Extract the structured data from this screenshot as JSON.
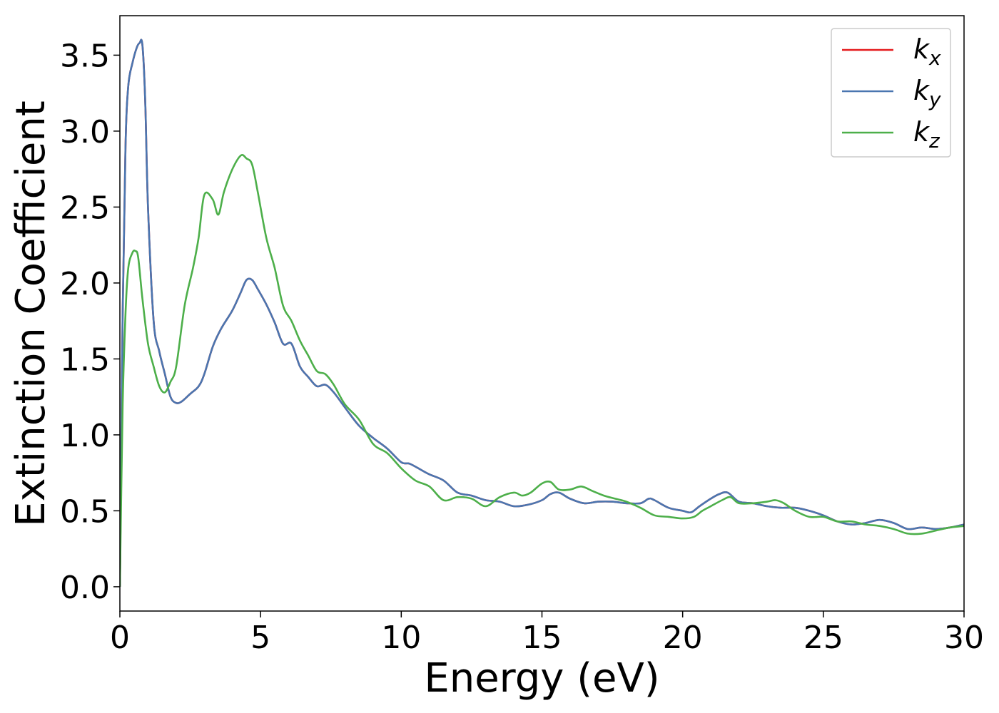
{
  "chart_data": {
    "type": "line",
    "title": "",
    "xlabel": "Energy (eV)",
    "ylabel": "Extinction Coefficient",
    "xlim": [
      0,
      30
    ],
    "ylim": [
      -0.16,
      3.76
    ],
    "xticks": [
      0,
      5,
      10,
      15,
      20,
      25,
      30
    ],
    "xtick_labels": [
      "0",
      "5",
      "10",
      "15",
      "20",
      "25",
      "30"
    ],
    "yticks": [
      0.0,
      0.5,
      1.0,
      1.5,
      2.0,
      2.5,
      3.0,
      3.5
    ],
    "ytick_labels": [
      "0.0",
      "0.5",
      "1.0",
      "1.5",
      "2.0",
      "2.5",
      "3.0",
      "3.5"
    ],
    "grid": false,
    "legend_position": "top-right",
    "series": [
      {
        "name": "k",
        "subscript": "x",
        "color": "#e41a1c",
        "x": [
          0,
          0.1,
          0.2,
          0.3,
          0.45,
          0.6,
          0.7,
          0.8,
          0.9,
          1.0,
          1.2,
          1.4,
          1.6,
          1.8,
          2.0,
          2.2,
          2.5,
          2.8,
          3.0,
          3.3,
          3.6,
          4.0,
          4.3,
          4.5,
          4.7,
          4.9,
          5.2,
          5.5,
          5.8,
          6.1,
          6.4,
          6.7,
          7.0,
          7.3,
          7.6,
          8.0,
          8.5,
          9.0,
          9.5,
          10.0,
          10.3,
          10.7,
          11.0,
          11.5,
          12.0,
          12.5,
          13.0,
          13.5,
          14.0,
          14.5,
          15.0,
          15.3,
          15.6,
          16.0,
          16.5,
          17.0,
          17.5,
          18.0,
          18.5,
          18.8,
          19.0,
          19.5,
          20.0,
          20.3,
          20.6,
          21.0,
          21.3,
          21.6,
          22.0,
          22.5,
          23.0,
          23.5,
          24.0,
          24.5,
          25.0,
          25.5,
          26.0,
          26.5,
          27.0,
          27.5,
          28.0,
          28.5,
          29.0,
          29.5,
          30.0
        ],
        "y": [
          0.0,
          1.8,
          2.9,
          3.3,
          3.45,
          3.55,
          3.58,
          3.57,
          3.2,
          2.5,
          1.75,
          1.55,
          1.4,
          1.25,
          1.21,
          1.22,
          1.27,
          1.32,
          1.4,
          1.58,
          1.7,
          1.82,
          1.94,
          2.02,
          2.02,
          1.96,
          1.86,
          1.74,
          1.6,
          1.6,
          1.45,
          1.38,
          1.32,
          1.33,
          1.28,
          1.18,
          1.06,
          0.98,
          0.91,
          0.82,
          0.81,
          0.77,
          0.74,
          0.7,
          0.62,
          0.6,
          0.57,
          0.56,
          0.53,
          0.54,
          0.57,
          0.61,
          0.62,
          0.58,
          0.55,
          0.56,
          0.56,
          0.55,
          0.55,
          0.58,
          0.57,
          0.52,
          0.5,
          0.49,
          0.53,
          0.58,
          0.61,
          0.62,
          0.56,
          0.55,
          0.53,
          0.52,
          0.52,
          0.5,
          0.47,
          0.43,
          0.41,
          0.42,
          0.44,
          0.42,
          0.38,
          0.39,
          0.38,
          0.39,
          0.41
        ]
      },
      {
        "name": "k",
        "subscript": "y",
        "color": "#4a76b0",
        "x": [
          0,
          0.1,
          0.2,
          0.3,
          0.45,
          0.6,
          0.7,
          0.8,
          0.9,
          1.0,
          1.2,
          1.4,
          1.6,
          1.8,
          2.0,
          2.2,
          2.5,
          2.8,
          3.0,
          3.3,
          3.6,
          4.0,
          4.3,
          4.5,
          4.7,
          4.9,
          5.2,
          5.5,
          5.8,
          6.1,
          6.4,
          6.7,
          7.0,
          7.3,
          7.6,
          8.0,
          8.5,
          9.0,
          9.5,
          10.0,
          10.3,
          10.7,
          11.0,
          11.5,
          12.0,
          12.5,
          13.0,
          13.5,
          14.0,
          14.5,
          15.0,
          15.3,
          15.6,
          16.0,
          16.5,
          17.0,
          17.5,
          18.0,
          18.5,
          18.8,
          19.0,
          19.5,
          20.0,
          20.3,
          20.6,
          21.0,
          21.3,
          21.6,
          22.0,
          22.5,
          23.0,
          23.5,
          24.0,
          24.5,
          25.0,
          25.5,
          26.0,
          26.5,
          27.0,
          27.5,
          28.0,
          28.5,
          29.0,
          29.5,
          30.0
        ],
        "y": [
          0.0,
          1.8,
          2.9,
          3.3,
          3.45,
          3.55,
          3.58,
          3.57,
          3.2,
          2.5,
          1.75,
          1.55,
          1.4,
          1.25,
          1.21,
          1.22,
          1.27,
          1.32,
          1.4,
          1.58,
          1.7,
          1.82,
          1.94,
          2.02,
          2.02,
          1.96,
          1.86,
          1.74,
          1.6,
          1.6,
          1.45,
          1.38,
          1.32,
          1.33,
          1.28,
          1.18,
          1.06,
          0.98,
          0.91,
          0.82,
          0.81,
          0.77,
          0.74,
          0.7,
          0.62,
          0.6,
          0.57,
          0.56,
          0.53,
          0.54,
          0.57,
          0.61,
          0.62,
          0.58,
          0.55,
          0.56,
          0.56,
          0.55,
          0.55,
          0.58,
          0.57,
          0.52,
          0.5,
          0.49,
          0.53,
          0.58,
          0.61,
          0.62,
          0.56,
          0.55,
          0.53,
          0.52,
          0.52,
          0.5,
          0.47,
          0.43,
          0.41,
          0.42,
          0.44,
          0.42,
          0.38,
          0.39,
          0.38,
          0.39,
          0.41
        ]
      },
      {
        "name": "k",
        "subscript": "z",
        "color": "#4daf4a",
        "x": [
          0,
          0.1,
          0.2,
          0.3,
          0.45,
          0.55,
          0.65,
          0.8,
          1.0,
          1.2,
          1.4,
          1.6,
          1.8,
          2.0,
          2.3,
          2.6,
          2.8,
          3.0,
          3.3,
          3.5,
          3.7,
          4.0,
          4.3,
          4.5,
          4.7,
          4.9,
          5.2,
          5.5,
          5.8,
          6.1,
          6.4,
          6.7,
          7.0,
          7.3,
          7.6,
          8.0,
          8.5,
          9.0,
          9.5,
          10.0,
          10.5,
          11.0,
          11.5,
          12.0,
          12.5,
          13.0,
          13.5,
          14.0,
          14.3,
          14.6,
          15.0,
          15.3,
          15.6,
          16.0,
          16.4,
          16.8,
          17.2,
          17.6,
          18.0,
          18.5,
          19.0,
          19.5,
          20.0,
          20.4,
          20.7,
          21.0,
          21.4,
          21.7,
          22.0,
          22.5,
          23.0,
          23.3,
          23.6,
          24.0,
          24.5,
          25.0,
          25.5,
          26.0,
          26.5,
          27.0,
          27.5,
          28.0,
          28.5,
          29.0,
          29.5,
          30.0
        ],
        "y": [
          0.0,
          1.2,
          1.8,
          2.1,
          2.2,
          2.21,
          2.17,
          1.9,
          1.6,
          1.45,
          1.32,
          1.28,
          1.35,
          1.45,
          1.85,
          2.1,
          2.3,
          2.58,
          2.55,
          2.45,
          2.6,
          2.75,
          2.84,
          2.82,
          2.78,
          2.6,
          2.3,
          2.1,
          1.85,
          1.75,
          1.62,
          1.52,
          1.42,
          1.4,
          1.33,
          1.2,
          1.1,
          0.94,
          0.88,
          0.78,
          0.7,
          0.66,
          0.57,
          0.59,
          0.58,
          0.53,
          0.59,
          0.62,
          0.6,
          0.62,
          0.68,
          0.69,
          0.64,
          0.64,
          0.66,
          0.63,
          0.6,
          0.58,
          0.56,
          0.52,
          0.47,
          0.46,
          0.45,
          0.46,
          0.5,
          0.53,
          0.57,
          0.59,
          0.55,
          0.55,
          0.56,
          0.57,
          0.55,
          0.5,
          0.46,
          0.46,
          0.43,
          0.43,
          0.41,
          0.4,
          0.38,
          0.35,
          0.35,
          0.37,
          0.39,
          0.4
        ]
      }
    ]
  }
}
